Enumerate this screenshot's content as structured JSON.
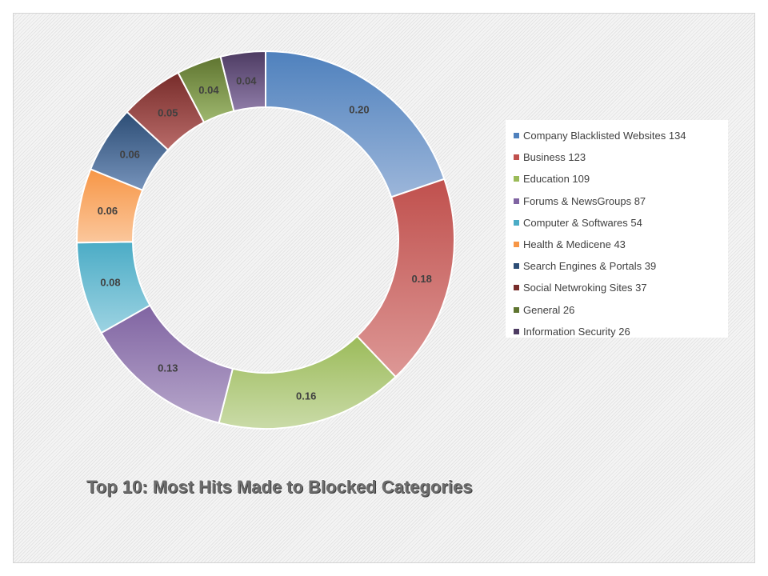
{
  "chart_data": {
    "type": "pie",
    "title": "Top 10: Most Hits Made to Blocked Categories",
    "legend_position": "right",
    "categories": [
      "Company Blacklisted Websites",
      "Business",
      "Education",
      "Forums & NewsGroups",
      "Computer & Softwares",
      "Health & Medicene",
      "Search Engines & Portals",
      "Social Networking Sites",
      "General",
      "Information Security"
    ],
    "values": [
      134,
      123,
      109,
      87,
      54,
      43,
      39,
      37,
      26,
      26
    ],
    "shares": [
      0.2,
      0.18,
      0.16,
      0.13,
      0.08,
      0.06,
      0.06,
      0.05,
      0.04,
      0.04
    ],
    "share_labels": [
      "0.20",
      "0.18",
      "0.16",
      "0.13",
      "0.08",
      "0.06",
      "0.06",
      "0.05",
      "0.04",
      "0.04"
    ],
    "legend_labels": [
      "Company Blacklisted Websites 134",
      "Business 123",
      "Education 109",
      "Forums & NewsGroups 87",
      "Computer & Softwares 54",
      "Health & Medicene 43",
      "Search Engines & Portals 39",
      "Social Netwroking Sites 37",
      "General 26",
      "Information Security 26"
    ],
    "colors": [
      "#4f81bd",
      "#c0504d",
      "#9bbb59",
      "#8064a2",
      "#4bacc6",
      "#f79646",
      "#2c4d75",
      "#772c2a",
      "#5f7530",
      "#4d3b62"
    ],
    "colors_light": [
      "#9cb6da",
      "#dd9896",
      "#cadba8",
      "#b7a7cb",
      "#9dd3e2",
      "#fbc79c",
      "#7693bb",
      "#b96b69",
      "#9fb86f",
      "#8f7ca8"
    ]
  }
}
